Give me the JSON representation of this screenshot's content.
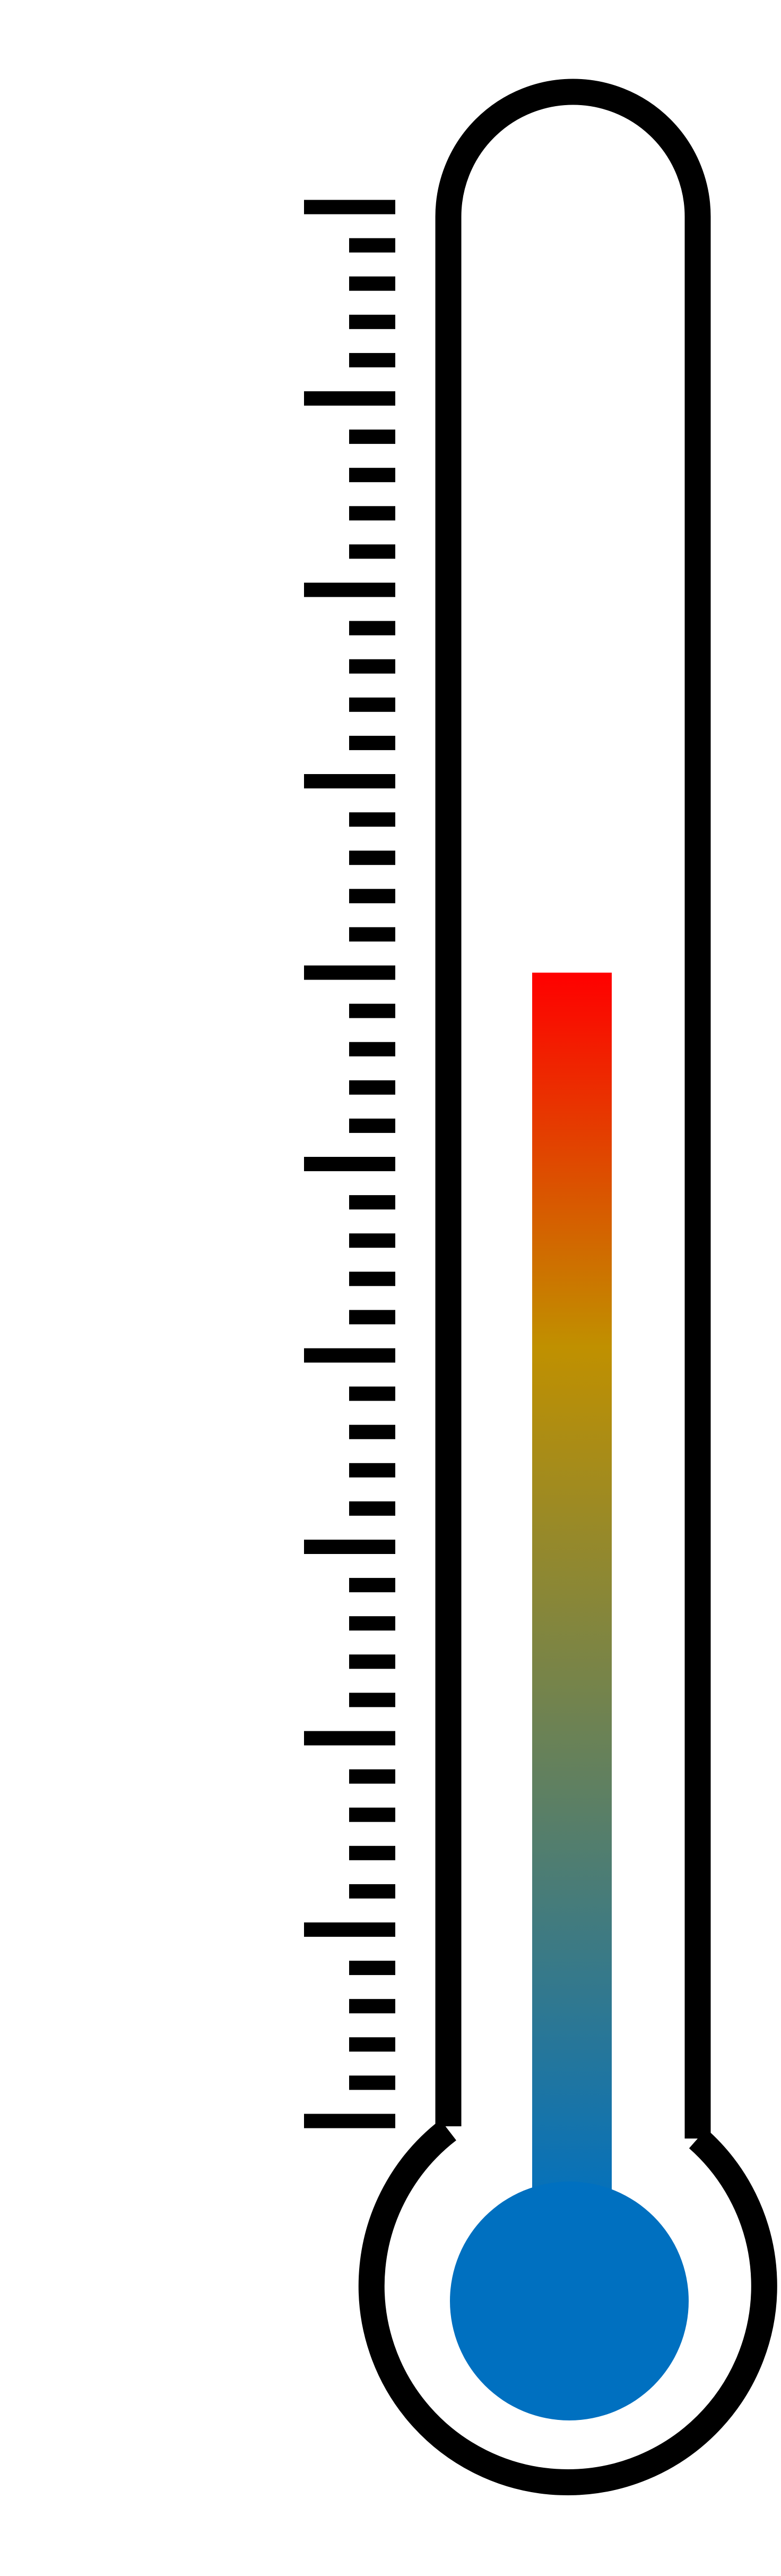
{
  "thermometer": {
    "level_fraction": 0.6,
    "major_ticks": 11,
    "minor_ticks_per_interval": 4,
    "outline_color": "#000000",
    "bulb_color": "#0070c0",
    "gradient_colors": [
      "#ff0000",
      "#c09000",
      "#0070c0"
    ]
  }
}
